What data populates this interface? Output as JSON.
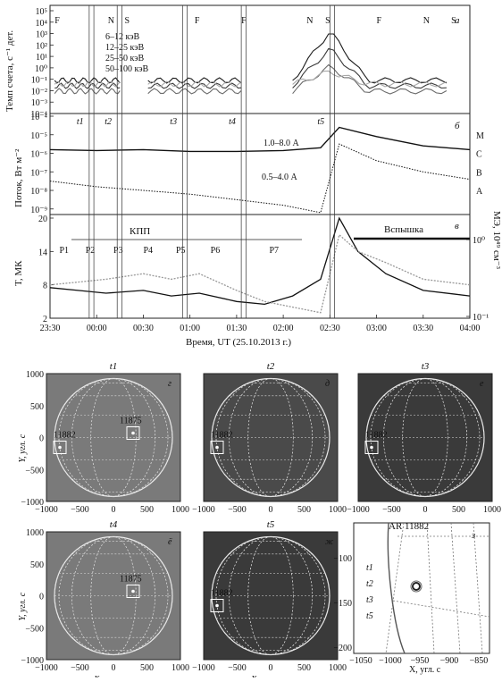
{
  "chart_data": [
    {
      "type": "line",
      "panel": "а",
      "ylabel": "Темп счета, с⁻¹ дет.",
      "yscale": "log",
      "y_ticks": [
        "10⁵",
        "10⁴",
        "10³",
        "10²",
        "10¹",
        "10⁰",
        "10⁻¹",
        "10⁻²",
        "10⁻³",
        "10⁻⁴"
      ],
      "ylim_exp": [
        -4,
        5
      ],
      "orbit_flags": [
        "F",
        "N",
        "S",
        "F",
        "F",
        "N",
        "S",
        "F",
        "N",
        "S"
      ],
      "legend": [
        "6–12 кэВ",
        "12–25 кэВ",
        "25–50 кэВ",
        "50–100 кэВ"
      ],
      "series_colors": [
        "#1a1a1a",
        "#3a3a3a",
        "#6a6a6a",
        "#a8a8a8"
      ]
    },
    {
      "type": "line",
      "panel": "б",
      "ylabel": "Поток, Вт м⁻²",
      "yscale": "log",
      "y_ticks": [
        "10⁻⁴",
        "10⁻⁵",
        "10⁻⁶",
        "10⁻⁷",
        "10⁻⁸",
        "10⁻⁹"
      ],
      "right_labels": [
        "M",
        "C",
        "B",
        "A"
      ],
      "series": [
        {
          "name": "1.0–8.0 А",
          "x_h": [
            0,
            0.5,
            1,
            1.5,
            2,
            2.5,
            2.9,
            3.1,
            3.5,
            4,
            4.5
          ],
          "log_y": [
            -5.8,
            -5.85,
            -5.8,
            -5.9,
            -5.9,
            -5.85,
            -5.7,
            -4.6,
            -5.1,
            -5.6,
            -5.8
          ]
        },
        {
          "name": "0.5–4.0 А",
          "x_h": [
            0,
            0.5,
            1,
            1.5,
            2,
            2.5,
            2.9,
            3.1,
            3.5,
            4,
            4.5
          ],
          "log_y": [
            -7.5,
            -7.8,
            -8.0,
            -8.2,
            -8.5,
            -8.8,
            -9.2,
            -5.5,
            -6.4,
            -7.0,
            -7.4
          ]
        }
      ],
      "time_markers": [
        "t1",
        "t2",
        "t3",
        "t4",
        "t5"
      ]
    },
    {
      "type": "line",
      "panel": "в",
      "ylabel": "T, МК",
      "y2label": "МЭ, 10⁴⁹ см⁻³",
      "y_ticks": [
        "20",
        "14",
        "8",
        "2"
      ],
      "y2_ticks": [
        "10⁰",
        "10⁻¹"
      ],
      "xlabel": "Время, UT (25.10.2013 г.)",
      "x_ticks": [
        "23:30",
        "00:00",
        "00:30",
        "01:00",
        "01:30",
        "02:00",
        "02:30",
        "03:00",
        "03:30",
        "04:00"
      ],
      "kpp_label": "КПП",
      "periods": [
        "P1",
        "P2",
        "P3",
        "P4",
        "P5",
        "P6",
        "P7"
      ],
      "flare_label": "Вспышка",
      "series": [
        {
          "name": "T",
          "x_h": [
            0,
            0.3,
            0.6,
            1,
            1.3,
            1.6,
            2,
            2.3,
            2.6,
            2.9,
            3.1,
            3.3,
            3.6,
            4,
            4.5
          ],
          "y": [
            7.5,
            7,
            6.5,
            7,
            6,
            6.5,
            5,
            4.5,
            6,
            9,
            20,
            14,
            10,
            7,
            6
          ]
        },
        {
          "name": "МЭ",
          "x_h": [
            0,
            0.3,
            0.6,
            1,
            1.3,
            1.6,
            2,
            2.3,
            2.6,
            2.9,
            3.1,
            3.3,
            3.6,
            4,
            4.5
          ],
          "y": [
            8,
            8.5,
            9,
            10,
            9,
            10,
            7,
            5,
            4,
            3,
            17,
            14,
            12,
            9,
            8
          ]
        }
      ]
    },
    {
      "type": "other",
      "panels": [
        {
          "time": "t1",
          "letter": "г",
          "regions": [
            "11882",
            "11875"
          ],
          "bg": "#7a7a7a"
        },
        {
          "time": "t2",
          "letter": "д",
          "regions": [
            "11882"
          ],
          "bg": "#4a4a4a"
        },
        {
          "time": "t3",
          "letter": "е",
          "regions": [
            "11882"
          ],
          "bg": "#3a3a3a"
        },
        {
          "time": "t4",
          "letter": "ё",
          "regions": [
            "11875"
          ],
          "bg": "#7a7a7a"
        },
        {
          "time": "t5",
          "letter": "ж",
          "regions": [
            "11882"
          ],
          "bg": "#3a3a3a"
        }
      ],
      "x_ticks": [
        "−1000",
        "−500",
        "0",
        "500",
        "1000"
      ],
      "y_ticks": [
        "1000",
        "500",
        "0",
        "−500",
        "−1000"
      ],
      "xlabel": "X, угл. с",
      "ylabel": "Y, угл. с"
    },
    {
      "type": "other",
      "title": "AR 11882",
      "letter": "з",
      "x_ticks": [
        "−1050",
        "−1000",
        "−950",
        "−900",
        "−850"
      ],
      "y_ticks": [
        "−100",
        "−150",
        "−200"
      ],
      "xlabel": "X, угл. с",
      "time_legend": [
        "t1",
        "t2",
        "t3",
        "t5"
      ]
    }
  ]
}
